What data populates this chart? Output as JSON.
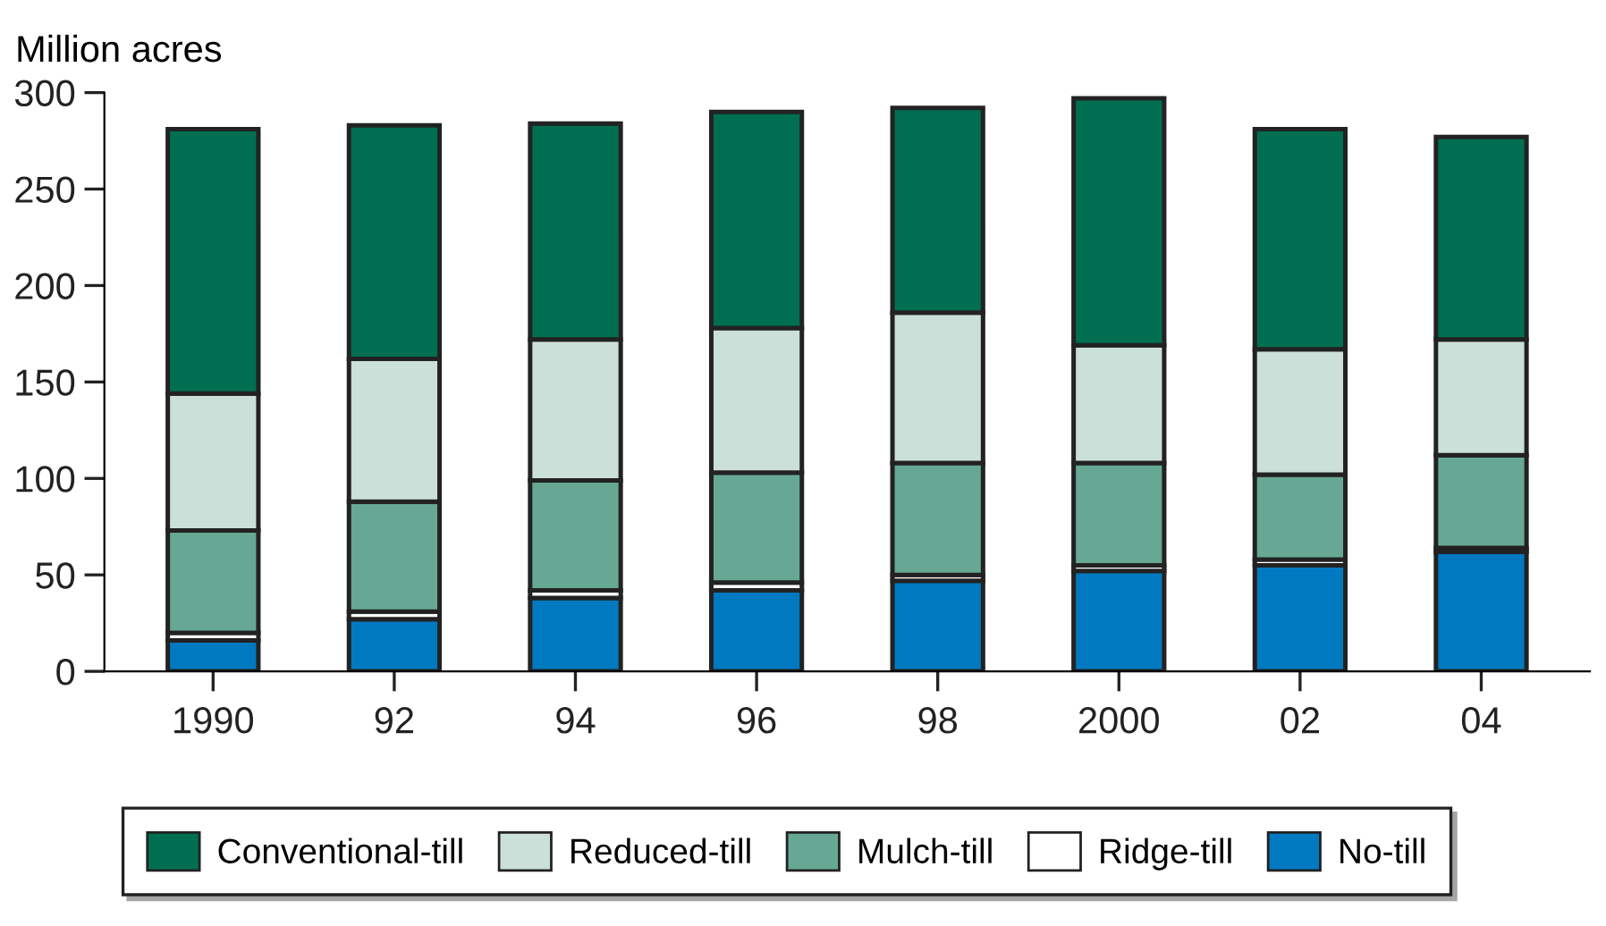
{
  "chart_data": {
    "type": "bar",
    "stacked": true,
    "ylabel": "Million acres",
    "categories": [
      "1990",
      "92",
      "94",
      "96",
      "98",
      "2000",
      "02",
      "04"
    ],
    "series": [
      {
        "name": "No-till",
        "color": "#0079c1",
        "values": [
          16,
          27,
          38,
          42,
          47,
          52,
          55,
          62
        ]
      },
      {
        "name": "Ridge-till",
        "color": "#ffffff",
        "values": [
          4,
          4,
          4,
          4,
          3,
          3,
          3,
          2
        ]
      },
      {
        "name": "Mulch-till",
        "color": "#66a894",
        "values": [
          53,
          57,
          57,
          57,
          58,
          53,
          44,
          48
        ]
      },
      {
        "name": "Reduced-till",
        "color": "#cbe0d8",
        "values": [
          71,
          74,
          73,
          75,
          78,
          61,
          65,
          60
        ]
      },
      {
        "name": "Conventional-till",
        "color": "#006f51",
        "values": [
          137,
          121,
          112,
          112,
          106,
          128,
          114,
          105
        ]
      }
    ],
    "ylim": [
      0,
      300
    ],
    "yticks": [
      0,
      50,
      100,
      150,
      200,
      250,
      300
    ],
    "grid": false,
    "legend": "bottom"
  }
}
